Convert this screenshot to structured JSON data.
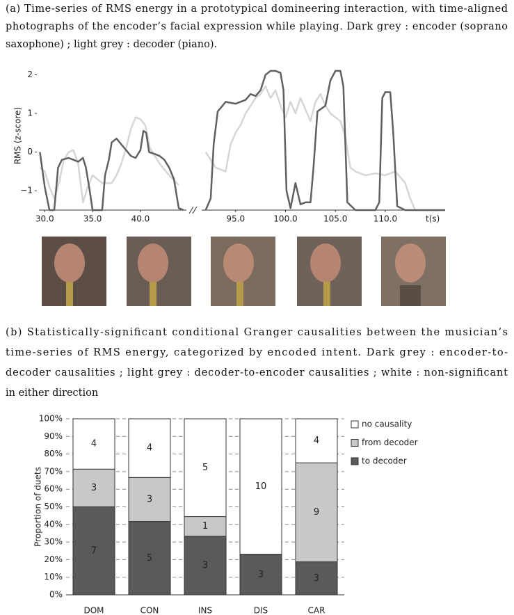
{
  "caption_a": [
    "(a) Time-series of RMS energy in a prototypical domineering interaction, with time-aligned",
    "photographs of the encoder’s facial expression while playing. Dark grey : encoder (soprano",
    "saxophone) ; light grey : decoder (piano)."
  ],
  "caption_b": [
    "(b) Statistically-significant conditional Granger causalities between the musician’s",
    "time-series of RMS energy, categorized by encoded intent. Dark grey : encoder-to-",
    "decoder causalities ; light grey : decoder-to-encoder causalities ; white : non-significant",
    "in either direction"
  ],
  "chart_data": [
    {
      "type": "line",
      "ylabel": "RMS (z-score)",
      "xlabel": "t(s)",
      "xlim": [
        [
          29.4,
          44.8
        ],
        [
          91.6,
          116
        ]
      ],
      "xticks": [
        {
          "value": 30,
          "label": "30.0"
        },
        {
          "value": 35,
          "label": "35.0"
        },
        {
          "value": 40,
          "label": "40.0"
        },
        {
          "value": 95,
          "label": "95.0"
        },
        {
          "value": 100,
          "label": "100.0"
        },
        {
          "value": 105,
          "label": "105.0"
        },
        {
          "value": 110,
          "label": "110.0"
        }
      ],
      "ylim": [
        -1.5,
        2.35
      ],
      "yticks": [
        {
          "value": -1,
          "label": "−1"
        },
        0,
        1,
        2
      ],
      "series": [
        {
          "color": "#606060",
          "x": [
            29.5,
            30,
            30.5,
            31,
            31.4,
            31.8,
            32.5,
            33,
            33.5,
            34,
            34.3,
            34.7,
            35,
            35.5,
            36,
            36.3,
            36.7,
            37,
            37.5,
            38,
            38.5,
            39,
            39.5,
            40,
            40.3,
            40.6,
            40.9,
            41.5,
            42,
            42.5,
            43,
            43.5,
            44,
            44.5,
            92,
            92.5,
            92.8,
            93.2,
            94,
            95,
            96,
            96.5,
            97,
            97.5,
            98,
            98.5,
            99,
            99.5,
            99.8,
            100.1,
            100.5,
            101,
            101.5,
            102,
            102.5,
            102.8,
            103.2,
            104,
            104.5,
            105,
            105.5,
            105.8,
            106.2,
            107,
            108,
            109,
            109.4,
            109.7,
            110,
            110.5,
            110.8,
            111.2,
            112,
            114,
            116
          ],
          "values": [
            0,
            -0.9,
            -1.5,
            -1.5,
            -0.4,
            -0.2,
            -0.15,
            -0.2,
            -0.25,
            -0.15,
            -0.4,
            -1.0,
            -1.5,
            -1.5,
            -1.5,
            -0.6,
            -0.2,
            0.25,
            0.35,
            0.2,
            0.05,
            -0.1,
            -0.15,
            0.05,
            0.55,
            0.5,
            0.0,
            -0.05,
            -0.1,
            -0.2,
            -0.4,
            -0.7,
            -1.45,
            -1.5,
            -1.5,
            -1.2,
            0.2,
            1.05,
            1.3,
            1.25,
            1.35,
            1.5,
            1.45,
            1.6,
            2.0,
            2.1,
            2.1,
            2.05,
            1.6,
            -1.0,
            -1.45,
            -0.8,
            -1.35,
            -1.3,
            -1.3,
            -0.4,
            1.05,
            1.2,
            1.85,
            2.1,
            2.1,
            1.7,
            -1.3,
            -1.5,
            -1.5,
            -1.5,
            -1.3,
            1.4,
            1.55,
            1.55,
            0.5,
            -1.4,
            -1.5,
            -1.5,
            -1.5
          ]
        },
        {
          "color": "#d6d6d6",
          "x": [
            29.5,
            30,
            30.5,
            31,
            31.5,
            32,
            32.5,
            33,
            33.5,
            34,
            34.5,
            35,
            36,
            37,
            37.5,
            38,
            38.5,
            39,
            39.5,
            40,
            40.5,
            41,
            41.5,
            42,
            43,
            44,
            92,
            93,
            94,
            94.5,
            95,
            95.5,
            96,
            96.5,
            97,
            97.5,
            98,
            98.5,
            99,
            99.5,
            100,
            100.5,
            101,
            101.5,
            102,
            102.5,
            103,
            103.5,
            104,
            104.5,
            105,
            105.5,
            106,
            106.5,
            107,
            108,
            109,
            110,
            111,
            112,
            112.5,
            113,
            114,
            116
          ],
          "values": [
            -0.4,
            -0.5,
            -0.9,
            -1.2,
            -0.8,
            -0.2,
            0.0,
            0.05,
            -0.3,
            -1.3,
            -0.9,
            -0.6,
            -0.8,
            -0.8,
            -0.6,
            -0.3,
            0.1,
            0.6,
            0.9,
            0.85,
            0.7,
            0.1,
            -0.1,
            -0.3,
            -0.6,
            -0.85,
            0.0,
            -0.4,
            -0.5,
            0.2,
            0.5,
            0.7,
            1.0,
            1.2,
            1.4,
            1.5,
            1.7,
            1.4,
            1.6,
            1.2,
            0.9,
            1.3,
            1.0,
            1.4,
            1.1,
            0.8,
            1.3,
            1.5,
            1.2,
            1.0,
            0.9,
            0.8,
            0.4,
            -0.4,
            -0.5,
            -0.6,
            -0.55,
            -0.6,
            -0.5,
            -0.8,
            -1.2,
            -1.5,
            -1.5,
            -1.5
          ]
        }
      ]
    },
    {
      "type": "bar",
      "stacked": true,
      "ylabel": "Proportion of duets",
      "categories": [
        "DOM",
        "CON",
        "INS",
        "DIS",
        "CAR"
      ],
      "ylim": [
        0,
        100
      ],
      "yticks": [
        {
          "value": 0,
          "label": "0%"
        },
        {
          "value": 10,
          "label": "10%"
        },
        {
          "value": 20,
          "label": "20%"
        },
        {
          "value": 30,
          "label": "30%"
        },
        {
          "value": 40,
          "label": "40%"
        },
        {
          "value": 50,
          "label": "50%"
        },
        {
          "value": 60,
          "label": "60%"
        },
        {
          "value": 70,
          "label": "70%"
        },
        {
          "value": 80,
          "label": "80%"
        },
        {
          "value": 90,
          "label": "90%"
        },
        {
          "value": 100,
          "label": "100%"
        }
      ],
      "grid": true,
      "legend": "right",
      "series": [
        {
          "name": "to decoder",
          "color": "#5a5a5a",
          "values": [
            50,
            41.67,
            33.33,
            23.08,
            18.75
          ],
          "counts": [
            7,
            5,
            3,
            3,
            3
          ]
        },
        {
          "name": "from decoder",
          "color": "#c8c8c8",
          "values": [
            21.43,
            25,
            11.11,
            0,
            56.25
          ],
          "counts": [
            3,
            3,
            1,
            null,
            9
          ]
        },
        {
          "name": "no causality",
          "color": "#ffffff",
          "values": [
            28.57,
            33.33,
            55.56,
            76.92,
            25
          ],
          "counts": [
            4,
            4,
            5,
            10,
            4
          ]
        }
      ]
    }
  ]
}
